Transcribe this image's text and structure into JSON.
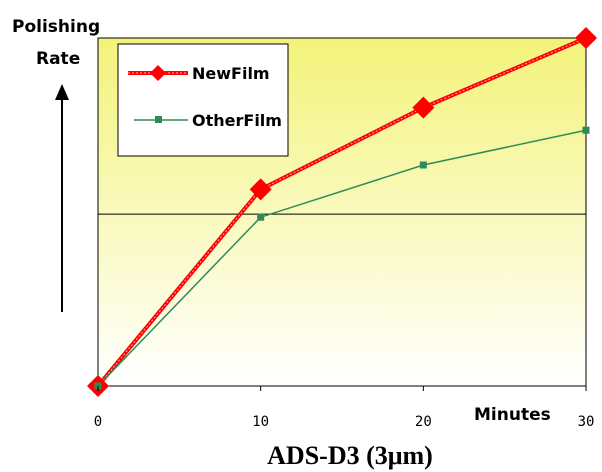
{
  "chart_data": {
    "type": "line",
    "title": "ADS-D3 (3μm)",
    "ylabel": [
      "Polishing",
      "Rate"
    ],
    "xlabel": "Minutes",
    "x": [
      0,
      10,
      20,
      30
    ],
    "xlim": [
      0,
      30
    ],
    "ylim": [
      0,
      100
    ],
    "reference_line_y": 49.4,
    "series": [
      {
        "name": "NewFilm",
        "values": [
          0,
          56.5,
          80,
          100
        ],
        "color": "#ff0000",
        "marker": "diamond"
      },
      {
        "name": "OtherFilm",
        "values": [
          0,
          48.5,
          63.5,
          73.5
        ],
        "color": "#2e8b57",
        "marker": "square"
      }
    ],
    "legend": "top-left",
    "background_gradient": [
      "#f3f37a",
      "#ffffff"
    ]
  }
}
